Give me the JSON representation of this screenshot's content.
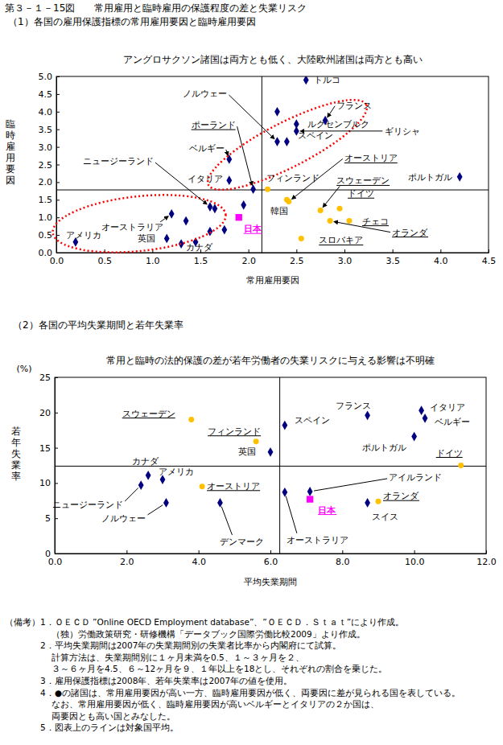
{
  "title": "第３－１－15図　　常用雇用と臨時雇用の保護程度の差と失業リスク",
  "chart_data": [
    {
      "type": "scatter",
      "title": "（1）各国の雇用保護指標の常用雇用要因と臨時雇用要因",
      "subtitle": "アングロサクソン諸国は両方とも低く、大陸欧州諸国は両方とも高い",
      "x_label": "常用雇用要因",
      "y_label": "臨時雇用要因",
      "xlim": [
        0,
        4.5
      ],
      "xticks": [
        {
          "value": 0,
          "label": "0.0"
        },
        0.5,
        {
          "value": 1,
          "label": "1.0"
        },
        1.5,
        {
          "value": 2,
          "label": "2.0"
        },
        2.5,
        {
          "value": 3,
          "label": "3.0"
        },
        3.5,
        {
          "value": 4,
          "label": "4.0"
        },
        4.5
      ],
      "ylim": [
        0,
        5
      ],
      "yticks": [
        {
          "value": 0,
          "label": "0.0"
        },
        0.5,
        {
          "value": 1,
          "label": "1.0"
        },
        1.5,
        {
          "value": 2,
          "label": "2.0"
        },
        2.5,
        {
          "value": 3,
          "label": "3.0"
        },
        3.5,
        {
          "value": 4,
          "label": "4.0"
        },
        4.5,
        {
          "value": 5,
          "label": "5.0"
        }
      ],
      "mean_x": 2.14,
      "mean_y": 1.78,
      "series": [
        {
          "color": "#000080",
          "marker": "diamond",
          "x": [
            2.6,
            2.3,
            2.8,
            2.5,
            2.5,
            2.3,
            2.4,
            1.8,
            1.8,
            2.05,
            4.2,
            1.6,
            1.95,
            1.65,
            1.2,
            1.35,
            1.15,
            1.3,
            1.45,
            1.6,
            1.75,
            0.2
          ],
          "values": [
            4.9,
            4.0,
            3.75,
            3.65,
            3.45,
            3.15,
            3.15,
            2.65,
            2.05,
            1.8,
            2.15,
            1.3,
            1.35,
            1.25,
            1.1,
            0.9,
            0.4,
            0.25,
            0.3,
            0.6,
            0.65,
            0.3
          ],
          "labels": [
            "トルコ",
            null,
            "フランス",
            "ルクセンブルク",
            "ギリシャ",
            "ノルウェー",
            "スペイン",
            "ベルギー",
            "イタリア",
            "ポーランド",
            "ポルトガル",
            "ニュージーランド",
            null,
            null,
            "オーストラリア",
            null,
            "英国",
            "カナダ",
            null,
            null,
            null,
            "アメリカ"
          ]
        },
        {
          "color": "#ffc000",
          "marker": "circle",
          "x": [
            2.2,
            2.4,
            2.42,
            2.75,
            2.95,
            3.05,
            2.85,
            2.55
          ],
          "values": [
            1.8,
            1.5,
            1.45,
            1.2,
            1.25,
            0.9,
            0.9,
            0.4
          ],
          "labels": [
            "フィンランド",
            "韓国",
            "オーストリア",
            "スウェーデン",
            "ドイツ",
            "チェコ",
            "オランダ",
            "スロバキア"
          ]
        },
        {
          "color": "#ff00ff",
          "marker": "square",
          "x": [
            1.9
          ],
          "values": [
            1.0
          ],
          "labels": [
            "日本"
          ]
        }
      ]
    },
    {
      "type": "scatter",
      "title": "（2）各国の平均失業期間と若年失業率",
      "subtitle": "常用と臨時の法的保護の差が若年労働者の失業リスクに与える影響は不明確",
      "x_label": "平均失業期間",
      "y_label": "若年失業率",
      "y_unit": "(%)",
      "xlim": [
        0,
        12
      ],
      "xticks": [
        {
          "value": 0,
          "label": "0.0"
        },
        {
          "value": 2,
          "label": "2.0"
        },
        {
          "value": 4,
          "label": "4.0"
        },
        {
          "value": 6,
          "label": "6.0"
        },
        {
          "value": 8,
          "label": "8.0"
        },
        {
          "value": 10,
          "label": "10.0"
        },
        {
          "value": 12,
          "label": "12.0"
        }
      ],
      "ylim": [
        0,
        25
      ],
      "yticks": [
        0,
        5,
        10,
        15,
        20,
        25
      ],
      "mean_x": 6.26,
      "mean_y": 12.4,
      "series": [
        {
          "color": "#000080",
          "marker": "diamond",
          "x": [
            6.4,
            8.7,
            10.2,
            10.3,
            10.0,
            6.0,
            2.6,
            3.0,
            2.4,
            3.1,
            4.6,
            6.4,
            7.1,
            8.7
          ],
          "values": [
            18.2,
            19.6,
            20.3,
            19.2,
            16.6,
            14.4,
            11.1,
            10.5,
            9.7,
            7.2,
            7.2,
            8.7,
            8.8,
            7.2
          ],
          "labels": [
            "スペイン",
            "フランス",
            "イタリア",
            "ベルギー",
            "ポルトガル",
            "英国",
            "カナダ",
            "アメリカ",
            "ニュージーランド",
            "ノルウェー",
            "デンマーク",
            "オーストラリア",
            "アイルランド",
            "スイス"
          ]
        },
        {
          "color": "#ffc000",
          "marker": "circle",
          "x": [
            3.8,
            5.6,
            4.1,
            9.0,
            11.3
          ],
          "values": [
            19.0,
            15.9,
            9.5,
            7.4,
            12.5
          ],
          "labels": [
            "スウェーデン",
            "フィンランド",
            "オーストリア",
            "オランダ",
            "ドイツ"
          ]
        },
        {
          "color": "#ff00ff",
          "marker": "square",
          "x": [
            7.1
          ],
          "values": [
            7.7
          ],
          "labels": [
            "日本"
          ]
        }
      ]
    }
  ],
  "notes_label": "（備考）",
  "notes": [
    [
      "1．ＯＥＣＤ ”Online OECD Employment database”、”ＯＥＣＤ．Ｓｔａｔ”により作成。",
      "（独）労働政策研究・研修機構「データブック国際労働比較2009」より作成。"
    ],
    [
      "2．平均失業期間は2007年の失業期間別の失業者比率から内閣府にて試算。",
      "計算方法は、失業期間別に１ヶ月未満を0.5、１～３ヶ月を２、",
      "３～６ヶ月を4.5、６～12ヶ月を９、１年以上を18とし、それぞれの割合を乗じた。"
    ],
    [
      "3．雇用保護指標は2008年、若年失業率は2007年の値を使用。"
    ],
    [
      "4．●の諸国は、常用雇用要因が高い一方、臨時雇用要因が低く、両要因に差が見られる国を表している。",
      "なお、常用雇用要因が低く、臨時雇用要因が高いベルギーとイタリアの２か国は、",
      "両要因とも高い国とみなした。"
    ],
    [
      "5．図表上のラインは対象国平均。"
    ]
  ]
}
